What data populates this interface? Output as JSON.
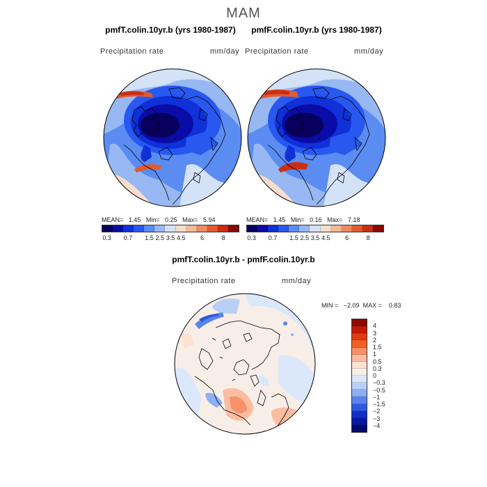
{
  "season": "MAM",
  "colors": {
    "abs_scale": [
      "#08005e",
      "#0a0ca8",
      "#1030d8",
      "#2858f0",
      "#5a8cf2",
      "#98b8f4",
      "#d4e2f8",
      "#f8ddcc",
      "#f4b898",
      "#ee8a62",
      "#e25a32",
      "#cc2e12",
      "#8a0a04"
    ],
    "diff_scale": [
      "#8a0a04",
      "#c41a06",
      "#e43a10",
      "#f26024",
      "#f8906a",
      "#fbbda2",
      "#fde2d2",
      "#f8eee8",
      "#dbe8fb",
      "#b8d0f8",
      "#8cb0f2",
      "#5a84ea",
      "#2e58e0",
      "#1030c8",
      "#0818a0",
      "#040a6e"
    ]
  },
  "panels": {
    "left": {
      "title": "pmfT.colin.10yr.b (yrs 1980-1987)",
      "variable": "Precipitation rate",
      "units": "mm/day",
      "mean_label": "MEAN=",
      "mean": "1.45",
      "min_label": "Min=",
      "min": "0.25",
      "max_label": "Max=",
      "max": "5.94"
    },
    "right": {
      "title": "pmfF.colin.10yr.b (yrs 1980-1987)",
      "variable": "Precipitation rate",
      "units": "mm/day",
      "mean_label": "MEAN=",
      "mean": "1.45",
      "min_label": "Min=",
      "min": "0.16",
      "max_label": "Max=",
      "max": "7.18"
    },
    "diff": {
      "title": "pmfT.colin.10yr.b - pmfF.colin.10yr.b",
      "variable": "Precipitation rate",
      "units": "mm/day",
      "min_label": "MIN =",
      "min": "−2.09",
      "max_label": "MAX =",
      "max": "0.83"
    }
  },
  "abs_ticks": [
    "0.3",
    "0.7",
    "1.5",
    "2.5",
    "3.5",
    "4.5",
    "6",
    "8"
  ],
  "diff_ticks": [
    "4",
    "3",
    "2",
    "1.5",
    "1",
    "0.5",
    "0.3",
    "0",
    "−0.3",
    "−0.5",
    "−1",
    "−1.5",
    "−2",
    "−3",
    "−4"
  ]
}
